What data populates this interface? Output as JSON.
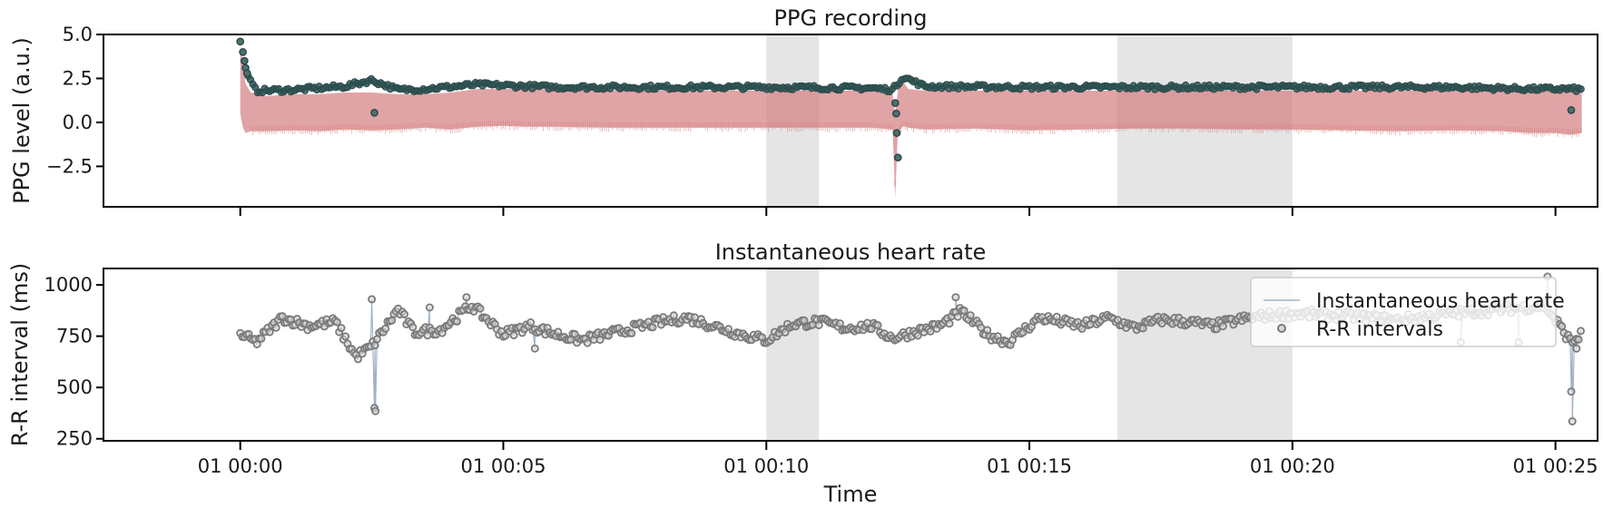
{
  "chart_data": [
    {
      "type": "line",
      "title": "PPG recording",
      "xlabel": "",
      "ylabel": "PPG level (a.u.)",
      "x_unit": "minutes from 01 00:00",
      "xlim": [
        -2.6,
        25.8
      ],
      "ylim": [
        -4.8,
        5.0
      ],
      "yticks": [
        -2.5,
        0.0,
        2.5,
        5.0
      ],
      "ytick_labels": [
        "−2.5",
        "0.0",
        "2.5",
        "5.0"
      ],
      "xticks": [
        0,
        5,
        10,
        15,
        20,
        25
      ],
      "xtick_labels_visible": false,
      "shaded_spans": [
        [
          10.0,
          11.0
        ],
        [
          16.67,
          20.0
        ]
      ],
      "colors": {
        "signal": "#d47d80",
        "peaks": "#2f5656",
        "shade": "#bdbdbd"
      },
      "series": [
        {
          "kind": "band",
          "x": [
            0,
            0.05,
            0.1,
            0.2,
            0.5,
            1.0,
            1.5,
            2.0,
            2.5,
            3.0,
            3.5,
            4.0,
            4.5,
            5.0,
            5.5,
            6.0,
            7.0,
            8.0,
            9.0,
            10.0,
            11.0,
            12.0,
            12.4,
            12.45,
            12.5,
            12.55,
            12.6,
            12.7,
            13.0,
            14.0,
            15.0,
            16.0,
            17.0,
            18.0,
            19.0,
            20.0,
            21.0,
            22.0,
            23.0,
            24.0,
            24.5,
            25.0,
            25.3,
            25.5
          ],
          "upper": [
            4.4,
            3.2,
            2.2,
            1.7,
            1.5,
            1.6,
            1.6,
            1.7,
            1.7,
            1.6,
            1.6,
            1.7,
            1.9,
            1.9,
            1.9,
            1.9,
            1.8,
            1.8,
            1.8,
            1.8,
            1.8,
            1.8,
            1.6,
            0.5,
            1.8,
            2.4,
            2.3,
            1.9,
            1.8,
            1.8,
            1.8,
            1.8,
            1.8,
            1.8,
            1.8,
            1.8,
            1.8,
            1.8,
            1.8,
            1.8,
            1.8,
            1.8,
            1.8,
            1.8
          ],
          "lower": [
            0.5,
            -0.3,
            -0.6,
            -0.5,
            -0.5,
            -0.45,
            -0.5,
            -0.4,
            -0.45,
            -0.4,
            -0.3,
            -0.4,
            -0.25,
            -0.2,
            -0.25,
            -0.25,
            -0.3,
            -0.3,
            -0.3,
            -0.3,
            -0.3,
            -0.3,
            -0.4,
            -4.3,
            -0.5,
            -0.4,
            -0.2,
            -0.3,
            -0.4,
            -0.35,
            -0.45,
            -0.4,
            -0.35,
            -0.35,
            -0.4,
            -0.4,
            -0.45,
            -0.5,
            -0.45,
            -0.5,
            -0.6,
            -0.6,
            -0.7,
            -0.6
          ]
        },
        {
          "kind": "peaks",
          "baseline": [
            [
              0,
              4.6
            ],
            [
              0.1,
              2.8
            ],
            [
              0.3,
              1.8
            ],
            [
              1.0,
              1.85
            ],
            [
              2.0,
              2.05
            ],
            [
              2.5,
              2.4
            ],
            [
              3.0,
              1.85
            ],
            [
              3.5,
              1.9
            ],
            [
              4.5,
              2.15
            ],
            [
              6.0,
              2.0
            ],
            [
              8.0,
              2.0
            ],
            [
              10.0,
              2.0
            ],
            [
              12.0,
              1.95
            ],
            [
              12.4,
              1.85
            ],
            [
              12.6,
              2.6
            ],
            [
              13.0,
              2.05
            ],
            [
              15.0,
              2.0
            ],
            [
              18.0,
              2.0
            ],
            [
              20.0,
              2.0
            ],
            [
              23.0,
              2.0
            ],
            [
              24.5,
              1.9
            ],
            [
              25.3,
              1.9
            ],
            [
              25.5,
              1.85
            ]
          ],
          "outliers": [
            [
              0,
              4.6
            ],
            [
              0.05,
              4.0
            ],
            [
              0.08,
              3.5
            ],
            [
              0.1,
              3.1
            ],
            [
              0.13,
              2.8
            ],
            [
              2.55,
              0.55
            ],
            [
              12.45,
              1.1
            ],
            [
              12.47,
              0.5
            ],
            [
              12.48,
              -0.6
            ],
            [
              12.5,
              -2.0
            ],
            [
              25.3,
              0.7
            ]
          ]
        }
      ]
    },
    {
      "type": "scatter",
      "title": "Instantaneous heart rate",
      "xlabel": "Time",
      "ylabel": "R-R interval (ms)",
      "x_unit": "minutes from 01 00:00",
      "xlim": [
        -2.6,
        25.8
      ],
      "ylim": [
        240,
        1080
      ],
      "yticks": [
        250,
        500,
        750,
        1000
      ],
      "ytick_labels": [
        "250",
        "500",
        "750",
        "1000"
      ],
      "xticks": [
        0,
        5,
        10,
        15,
        20,
        25
      ],
      "xtick_labels": [
        "01 00:00",
        "01 00:05",
        "01 00:10",
        "01 00:15",
        "01 00:20",
        "01 00:25"
      ],
      "shaded_spans": [
        [
          10.0,
          11.0
        ],
        [
          16.67,
          20.0
        ]
      ],
      "legend_position": "top-right",
      "colors": {
        "line": "#9fb3c8",
        "points_edge": "#7a7a7a",
        "points_fill": "#d9d9d9",
        "shade": "#bdbdbd"
      },
      "trend": [
        [
          0,
          760
        ],
        [
          0.3,
          720
        ],
        [
          0.8,
          840
        ],
        [
          1.3,
          800
        ],
        [
          1.8,
          820
        ],
        [
          2.2,
          650
        ],
        [
          2.5,
          700
        ],
        [
          3.0,
          880
        ],
        [
          3.3,
          770
        ],
        [
          3.8,
          780
        ],
        [
          4.4,
          900
        ],
        [
          5.0,
          760
        ],
        [
          5.5,
          800
        ],
        [
          6.0,
          760
        ],
        [
          6.5,
          730
        ],
        [
          7.0,
          760
        ],
        [
          8.0,
          820
        ],
        [
          8.5,
          840
        ],
        [
          9.0,
          800
        ],
        [
          9.5,
          760
        ],
        [
          10.0,
          730
        ],
        [
          10.5,
          810
        ],
        [
          11.0,
          820
        ],
        [
          11.5,
          790
        ],
        [
          12.0,
          800
        ],
        [
          12.4,
          740
        ],
        [
          12.8,
          770
        ],
        [
          13.3,
          800
        ],
        [
          13.7,
          870
        ],
        [
          14.2,
          760
        ],
        [
          14.6,
          720
        ],
        [
          15.2,
          840
        ],
        [
          16.0,
          800
        ],
        [
          16.5,
          840
        ],
        [
          17.0,
          790
        ],
        [
          17.5,
          830
        ],
        [
          18.0,
          820
        ],
        [
          18.5,
          800
        ],
        [
          19.0,
          830
        ],
        [
          19.5,
          850
        ],
        [
          20.0,
          860
        ],
        [
          21.0,
          850
        ],
        [
          22.0,
          830
        ],
        [
          23.0,
          860
        ],
        [
          24.0,
          880
        ],
        [
          24.8,
          900
        ],
        [
          25.3,
          720
        ],
        [
          25.5,
          760
        ]
      ],
      "outliers": [
        [
          2.5,
          930
        ],
        [
          2.55,
          400
        ],
        [
          2.57,
          385
        ],
        [
          3.6,
          890
        ],
        [
          4.3,
          940
        ],
        [
          5.6,
          690
        ],
        [
          13.6,
          940
        ],
        [
          23.2,
          720
        ],
        [
          24.3,
          720
        ],
        [
          24.85,
          1040
        ],
        [
          25.3,
          480
        ],
        [
          25.32,
          335
        ],
        [
          25.4,
          690
        ]
      ],
      "series": [
        {
          "name": "Instantaneous heart rate",
          "marker": "line"
        },
        {
          "name": "R-R intervals",
          "marker": "circle"
        }
      ]
    }
  ]
}
